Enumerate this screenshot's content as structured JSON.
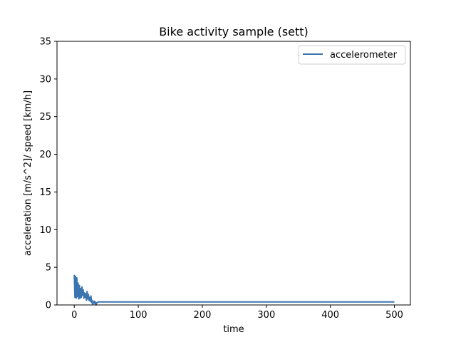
{
  "chart_data": {
    "type": "line",
    "title": "Bike activity sample (sett)",
    "xlabel": "time",
    "ylabel": "acceleration [m/s^2]/ speed [km/h]",
    "xlim": [
      -27,
      525
    ],
    "ylim": [
      0,
      35
    ],
    "xticks": [
      0,
      100,
      200,
      300,
      400,
      500
    ],
    "yticks": [
      0,
      5,
      10,
      15,
      20,
      25,
      30,
      35
    ],
    "legend_position": "top-right",
    "colors": {
      "accelerometer": "#3a75af"
    },
    "series": [
      {
        "name": "accelerometer",
        "x": [
          0,
          1,
          2,
          3,
          4,
          5,
          6,
          7,
          8,
          9,
          10,
          11,
          12,
          13,
          14,
          15,
          16,
          17,
          18,
          19,
          20,
          21,
          22,
          23,
          24,
          25,
          26,
          27,
          28,
          29,
          30,
          31,
          32,
          33,
          34,
          35,
          36,
          37,
          38,
          39,
          40,
          60,
          100,
          200,
          300,
          400,
          500
        ],
        "y": [
          4.0,
          1.0,
          3.8,
          0.9,
          3.6,
          1.1,
          2.9,
          0.8,
          2.6,
          0.9,
          2.2,
          1.0,
          2.4,
          1.3,
          2.0,
          0.9,
          1.6,
          1.0,
          1.5,
          0.6,
          1.8,
          0.8,
          1.4,
          0.6,
          1.0,
          0.5,
          1.2,
          0.3,
          0.6,
          0.1,
          0.3,
          0.5,
          0.2,
          0.4,
          0.0,
          0.3,
          0.3,
          0.4,
          0.4,
          0.4,
          0.4,
          0.4,
          0.4,
          0.4,
          0.4,
          0.4,
          0.4
        ]
      }
    ]
  }
}
